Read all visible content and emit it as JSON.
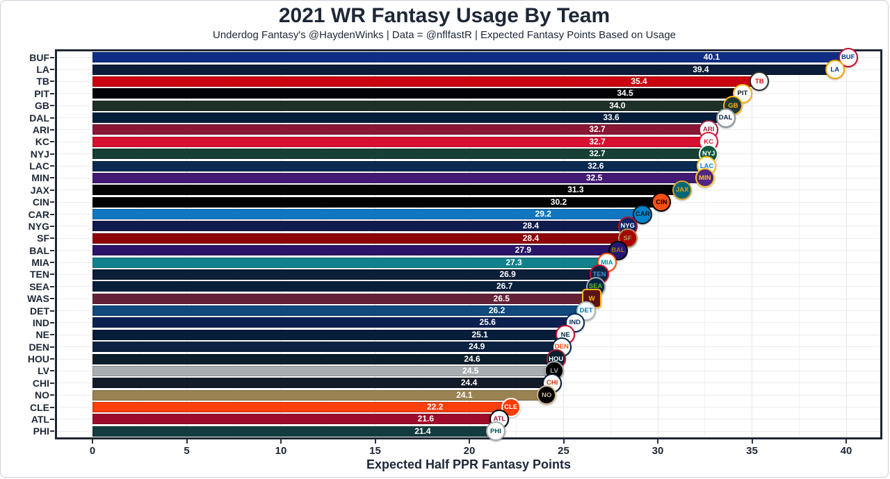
{
  "title": "2021 WR Fantasy Usage By Team",
  "subtitle": "Underdog Fantasy's @HaydenWinks | Data = @nflfastR | Expected Fantasy Points Based on Usage",
  "chart_data": {
    "type": "bar",
    "orientation": "horizontal",
    "title": "2021 WR Fantasy Usage By Team",
    "subtitle": "Underdog Fantasy's @HaydenWinks | Data = @nflfastR | Expected Fantasy Points Based on Usage",
    "xlabel": "Expected Half PPR Fantasy Points",
    "ylabel": "",
    "xlim": [
      0,
      41.9
    ],
    "x_ticks": [
      0,
      5,
      10,
      15,
      20,
      25,
      30,
      35,
      40
    ],
    "x_minor_step": 2.5,
    "grid": true,
    "legend": "none",
    "value_label_style": "white text inside bar at ~82% of bar length",
    "categories": [
      "BUF",
      "LA",
      "TB",
      "PIT",
      "GB",
      "DAL",
      "ARI",
      "KC",
      "NYJ",
      "LAC",
      "MIN",
      "JAX",
      "CIN",
      "CAR",
      "NYG",
      "SF",
      "BAL",
      "MIA",
      "TEN",
      "SEA",
      "WAS",
      "DET",
      "IND",
      "NE",
      "DEN",
      "HOU",
      "LV",
      "CHI",
      "NO",
      "CLE",
      "ATL",
      "PHI"
    ],
    "values": [
      40.1,
      39.4,
      35.4,
      34.5,
      34.0,
      33.6,
      32.7,
      32.7,
      32.7,
      32.6,
      32.5,
      31.3,
      30.2,
      29.2,
      28.4,
      28.4,
      27.9,
      27.3,
      26.9,
      26.7,
      26.5,
      26.2,
      25.6,
      25.1,
      24.9,
      24.6,
      24.5,
      24.4,
      24.1,
      22.2,
      21.6,
      21.4
    ],
    "bar_colors": [
      "#0e2d85",
      "#0a1c38",
      "#c9030f",
      "#030307",
      "#1d2f27",
      "#051d3a",
      "#891735",
      "#d90f31",
      "#164035",
      "#0b2a52",
      "#421a75",
      "#050505",
      "#020202",
      "#1176c2",
      "#101b4d",
      "#8e0308",
      "#2a1467",
      "#11818b",
      "#0c1e38",
      "#0a1f3c",
      "#632138",
      "#11497d",
      "#0b2050",
      "#081d39",
      "#0b2340",
      "#0a1e2b",
      "#a8adb2",
      "#131b2b",
      "#9a8252",
      "#fb3f0d",
      "#9e0a2b",
      "#143b3f"
    ],
    "logos": [
      {
        "abbr": "BUF",
        "bg": "#ffffff",
        "fg": "#00338d",
        "ring": "#c60c30",
        "shape": "circle"
      },
      {
        "abbr": "LA",
        "bg": "#ffffff",
        "fg": "#003594",
        "ring": "#ffa300",
        "shape": "circle"
      },
      {
        "abbr": "TB",
        "bg": "#ffffff",
        "fg": "#d50a0a",
        "ring": "#34302b",
        "shape": "circle"
      },
      {
        "abbr": "PIT",
        "bg": "#ffffff",
        "fg": "#101820",
        "ring": "#ffb612",
        "shape": "circle"
      },
      {
        "abbr": "GB",
        "bg": "#203731",
        "fg": "#ffb612",
        "ring": "#ffb612",
        "shape": "circle"
      },
      {
        "abbr": "DAL",
        "bg": "#ffffff",
        "fg": "#041e42",
        "ring": "#869397",
        "shape": "circle"
      },
      {
        "abbr": "ARI",
        "bg": "#ffffff",
        "fg": "#97233f",
        "ring": "#97233f",
        "shape": "circle"
      },
      {
        "abbr": "KC",
        "bg": "#ffffff",
        "fg": "#e31837",
        "ring": "#e31837",
        "shape": "circle"
      },
      {
        "abbr": "NYJ",
        "bg": "#125740",
        "fg": "#ffffff",
        "ring": "#ffffff",
        "shape": "circle"
      },
      {
        "abbr": "LAC",
        "bg": "#ffffff",
        "fg": "#0080c6",
        "ring": "#ffc20e",
        "shape": "circle"
      },
      {
        "abbr": "MIN",
        "bg": "#4f2683",
        "fg": "#ffc62f",
        "ring": "#ffc62f",
        "shape": "circle"
      },
      {
        "abbr": "JAX",
        "bg": "#006778",
        "fg": "#d7a22a",
        "ring": "#d7a22a",
        "shape": "circle"
      },
      {
        "abbr": "CIN",
        "bg": "#fb4f14",
        "fg": "#000000",
        "ring": "#000000",
        "shape": "circle"
      },
      {
        "abbr": "CAR",
        "bg": "#0085ca",
        "fg": "#101820",
        "ring": "#101820",
        "shape": "circle"
      },
      {
        "abbr": "NYG",
        "bg": "#0b2265",
        "fg": "#ffffff",
        "ring": "#a71930",
        "shape": "circle"
      },
      {
        "abbr": "SF",
        "bg": "#aa0000",
        "fg": "#b3995d",
        "ring": "#b3995d",
        "shape": "circle"
      },
      {
        "abbr": "BAL",
        "bg": "#241773",
        "fg": "#9e7c0c",
        "ring": "#000000",
        "shape": "circle"
      },
      {
        "abbr": "MIA",
        "bg": "#ffffff",
        "fg": "#008e97",
        "ring": "#fc4c02",
        "shape": "circle"
      },
      {
        "abbr": "TEN",
        "bg": "#0c2340",
        "fg": "#4b92db",
        "ring": "#c8102e",
        "shape": "circle"
      },
      {
        "abbr": "SEA",
        "bg": "#002244",
        "fg": "#69be28",
        "ring": "#a5acaf",
        "shape": "circle"
      },
      {
        "abbr": "W",
        "bg": "#5a1414",
        "fg": "#ffb612",
        "ring": "#ffb612",
        "shape": "square"
      },
      {
        "abbr": "DET",
        "bg": "#ffffff",
        "fg": "#0076b6",
        "ring": "#b0b7bc",
        "shape": "circle"
      },
      {
        "abbr": "IND",
        "bg": "#ffffff",
        "fg": "#002c5f",
        "ring": "#002c5f",
        "shape": "circle"
      },
      {
        "abbr": "NE",
        "bg": "#ffffff",
        "fg": "#002244",
        "ring": "#c60c30",
        "shape": "circle"
      },
      {
        "abbr": "DEN",
        "bg": "#ffffff",
        "fg": "#fb4f14",
        "ring": "#002244",
        "shape": "circle"
      },
      {
        "abbr": "HOU",
        "bg": "#03202f",
        "fg": "#ffffff",
        "ring": "#a71930",
        "shape": "circle"
      },
      {
        "abbr": "LV",
        "bg": "#000000",
        "fg": "#a5acaf",
        "ring": "#a5acaf",
        "shape": "circle"
      },
      {
        "abbr": "CHI",
        "bg": "#ffffff",
        "fg": "#c83803",
        "ring": "#0b162a",
        "shape": "circle"
      },
      {
        "abbr": "NO",
        "bg": "#000000",
        "fg": "#d3bc8d",
        "ring": "#d3bc8d",
        "shape": "circle"
      },
      {
        "abbr": "CLE",
        "bg": "#ff3c00",
        "fg": "#ffffff",
        "ring": "#ffffff",
        "shape": "circle"
      },
      {
        "abbr": "ATL",
        "bg": "#ffffff",
        "fg": "#a71930",
        "ring": "#000000",
        "shape": "circle"
      },
      {
        "abbr": "PHI",
        "bg": "#ffffff",
        "fg": "#004c54",
        "ring": "#a5acaf",
        "shape": "circle"
      }
    ]
  },
  "colors": {
    "ink": "#1f2633",
    "text": "#1e2737",
    "value_text": "#ffffff",
    "grid_major": "#e3e5e9",
    "grid_minor": "#f0f1f4",
    "canvas_border": "#c9ced6",
    "background": "#ffffff"
  }
}
